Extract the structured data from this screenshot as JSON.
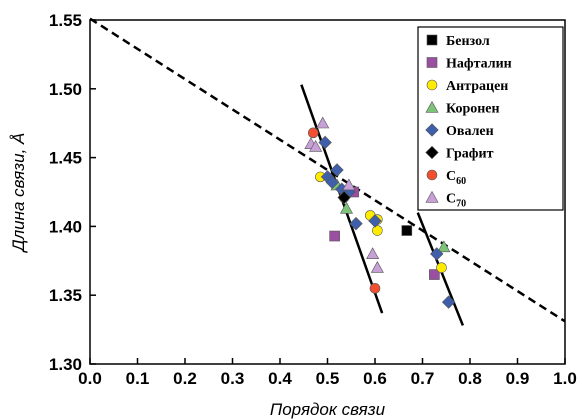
{
  "chart_data": {
    "type": "scatter",
    "xlabel": "Порядок связи",
    "ylabel": "Длина связи, Å",
    "xlim": [
      0.0,
      1.0
    ],
    "ylim": [
      1.3,
      1.55
    ],
    "x_ticks": [
      "0.0",
      "0.1",
      "0.2",
      "0.3",
      "0.4",
      "0.5",
      "0.6",
      "0.7",
      "0.8",
      "0.9",
      "1.0"
    ],
    "y_ticks": [
      "1.30",
      "1.35",
      "1.40",
      "1.45",
      "1.50",
      "1.55"
    ],
    "legend_position": "top-right",
    "series": [
      {
        "name": "Бензол",
        "name_sub": "",
        "marker": "square",
        "color": "#000000",
        "points": [
          [
            0.667,
            1.397
          ]
        ]
      },
      {
        "name": "Нафталин",
        "name_sub": "",
        "marker": "square",
        "color": "#9B4FA0",
        "points": [
          [
            0.515,
            1.393
          ],
          [
            0.555,
            1.425
          ],
          [
            0.725,
            1.365
          ]
        ]
      },
      {
        "name": "Антрацен",
        "name_sub": "",
        "marker": "circle",
        "color": "#FFEB00",
        "points": [
          [
            0.485,
            1.436
          ],
          [
            0.535,
            1.421
          ],
          [
            0.59,
            1.408
          ],
          [
            0.605,
            1.397
          ],
          [
            0.605,
            1.405
          ],
          [
            0.74,
            1.37
          ]
        ]
      },
      {
        "name": "Коронен",
        "name_sub": "",
        "marker": "triangle",
        "color": "#7CC576",
        "points": [
          [
            0.52,
            1.43
          ],
          [
            0.54,
            1.413
          ],
          [
            0.745,
            1.385
          ]
        ]
      },
      {
        "name": "Овален",
        "name_sub": "",
        "marker": "diamond",
        "color": "#3F5FAA",
        "points": [
          [
            0.495,
            1.461
          ],
          [
            0.5,
            1.436
          ],
          [
            0.51,
            1.432
          ],
          [
            0.52,
            1.441
          ],
          [
            0.53,
            1.427
          ],
          [
            0.545,
            1.425
          ],
          [
            0.56,
            1.402
          ],
          [
            0.6,
            1.404
          ],
          [
            0.73,
            1.38
          ],
          [
            0.755,
            1.345
          ]
        ]
      },
      {
        "name": "Графит",
        "name_sub": "",
        "marker": "diamond",
        "color": "#000000",
        "points": [
          [
            0.535,
            1.421
          ]
        ]
      },
      {
        "name": "C",
        "name_sub": "60",
        "marker": "circle",
        "color": "#F05030",
        "points": [
          [
            0.47,
            1.468
          ],
          [
            0.6,
            1.355
          ]
        ]
      },
      {
        "name": "C",
        "name_sub": "70",
        "marker": "triangle",
        "color": "#C8A0D8",
        "points": [
          [
            0.465,
            1.46
          ],
          [
            0.475,
            1.458
          ],
          [
            0.49,
            1.475
          ],
          [
            0.545,
            1.43
          ],
          [
            0.595,
            1.38
          ],
          [
            0.605,
            1.37
          ]
        ]
      }
    ],
    "lines": [
      {
        "style": "dashed",
        "x": [
          0.0,
          1.0
        ],
        "y": [
          1.551,
          1.331
        ]
      },
      {
        "style": "solid",
        "x": [
          0.445,
          0.615
        ],
        "y": [
          1.503,
          1.337
        ]
      },
      {
        "style": "solid",
        "x": [
          0.69,
          0.785
        ],
        "y": [
          1.41,
          1.328
        ]
      }
    ]
  }
}
